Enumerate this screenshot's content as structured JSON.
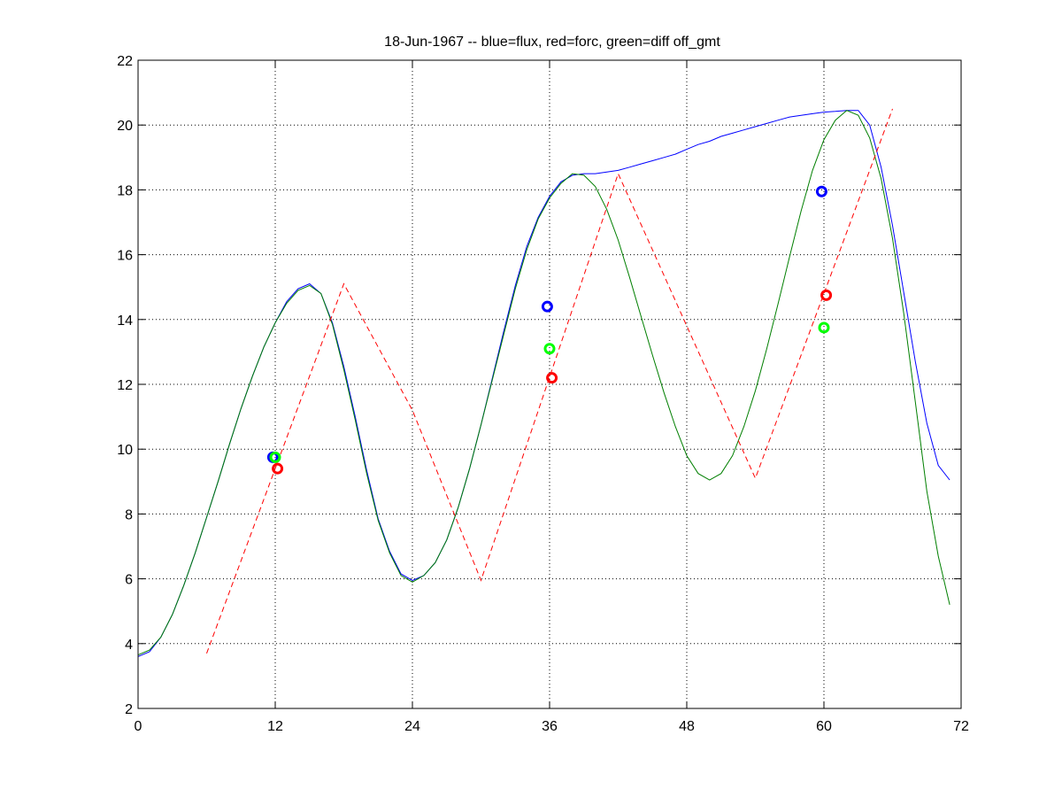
{
  "chart_data": {
    "type": "line",
    "title": "18-Jun-1967 -- blue=flux, red=forc, green=diff off_gmt",
    "xlabel": "",
    "ylabel": "",
    "xlim": [
      0,
      72
    ],
    "ylim": [
      2,
      22
    ],
    "xticks": [
      0,
      12,
      24,
      36,
      48,
      60,
      72
    ],
    "yticks": [
      2,
      4,
      6,
      8,
      10,
      12,
      14,
      16,
      18,
      20,
      22
    ],
    "grid": true,
    "series": [
      {
        "color": "#0000ff",
        "style": "solid",
        "x": [
          0,
          1,
          2,
          3,
          4,
          5,
          6,
          7,
          8,
          9,
          10,
          11,
          12,
          13,
          14,
          15,
          16,
          17,
          18,
          19,
          20,
          21,
          22,
          23,
          24,
          25,
          26,
          27,
          28,
          29,
          30,
          31,
          32,
          33,
          34,
          35,
          36,
          37,
          38,
          39,
          40,
          41,
          42,
          43,
          44,
          45,
          46,
          47,
          48,
          49,
          50,
          51,
          52,
          53,
          54,
          55,
          56,
          57,
          58,
          59,
          60,
          61,
          62,
          63,
          64,
          65,
          66,
          67,
          68,
          69,
          70,
          71
        ],
        "y": [
          3.6,
          3.75,
          4.2,
          4.9,
          5.8,
          6.8,
          7.9,
          9.0,
          10.15,
          11.25,
          12.25,
          13.15,
          13.9,
          14.55,
          14.95,
          15.1,
          14.8,
          13.9,
          12.55,
          11.0,
          9.35,
          7.85,
          6.85,
          6.15,
          5.95,
          6.1,
          6.5,
          7.2,
          8.2,
          9.4,
          10.75,
          12.2,
          13.65,
          15.05,
          16.25,
          17.15,
          17.8,
          18.25,
          18.45,
          18.5,
          18.5,
          18.55,
          18.6,
          18.7,
          18.8,
          18.9,
          19.0,
          19.1,
          19.25,
          19.4,
          19.5,
          19.65,
          19.75,
          19.85,
          19.95,
          20.05,
          20.15,
          20.25,
          20.3,
          20.35,
          20.4,
          20.42,
          20.45,
          20.45,
          20.0,
          18.7,
          16.9,
          14.8,
          12.7,
          10.8,
          9.5,
          9.05
        ]
      },
      {
        "color": "#007f00",
        "style": "solid",
        "x": [
          0,
          1,
          2,
          3,
          4,
          5,
          6,
          7,
          8,
          9,
          10,
          11,
          12,
          13,
          14,
          15,
          16,
          17,
          18,
          19,
          20,
          21,
          22,
          23,
          24,
          25,
          26,
          27,
          28,
          29,
          30,
          31,
          32,
          33,
          34,
          35,
          36,
          37,
          38,
          39,
          40,
          41,
          42,
          43,
          44,
          45,
          46,
          47,
          48,
          49,
          50,
          51,
          52,
          53,
          54,
          55,
          56,
          57,
          58,
          59,
          60,
          61,
          62,
          63,
          64,
          65,
          66,
          67,
          68,
          69,
          70,
          71
        ],
        "y": [
          3.65,
          3.8,
          4.2,
          4.9,
          5.8,
          6.8,
          7.9,
          9.0,
          10.15,
          11.25,
          12.25,
          13.15,
          13.9,
          14.5,
          14.9,
          15.05,
          14.8,
          13.85,
          12.45,
          10.9,
          9.25,
          7.8,
          6.8,
          6.1,
          5.9,
          6.1,
          6.5,
          7.2,
          8.2,
          9.4,
          10.75,
          12.15,
          13.55,
          14.95,
          16.15,
          17.1,
          17.75,
          18.2,
          18.5,
          18.45,
          18.1,
          17.4,
          16.45,
          15.3,
          14.1,
          12.9,
          11.75,
          10.7,
          9.8,
          9.25,
          9.05,
          9.25,
          9.8,
          10.7,
          11.8,
          13.1,
          14.5,
          15.95,
          17.35,
          18.6,
          19.55,
          20.15,
          20.45,
          20.3,
          19.6,
          18.35,
          16.5,
          14.15,
          11.45,
          8.7,
          6.7,
          5.2
        ]
      },
      {
        "color": "#ff0000",
        "style": "dashed",
        "x": [
          6,
          18,
          24,
          30,
          42,
          54,
          66
        ],
        "y": [
          3.7,
          15.1,
          11.2,
          5.95,
          18.5,
          9.1,
          20.5
        ]
      }
    ],
    "markers": [
      {
        "color": "#0000ff",
        "x": 11.8,
        "y": 9.75
      },
      {
        "color": "#00ff00",
        "x": 12.0,
        "y": 9.75
      },
      {
        "color": "#ff0000",
        "x": 12.2,
        "y": 9.4
      },
      {
        "color": "#0000ff",
        "x": 35.8,
        "y": 14.4
      },
      {
        "color": "#00ff00",
        "x": 36.0,
        "y": 13.1
      },
      {
        "color": "#ff0000",
        "x": 36.2,
        "y": 12.2
      },
      {
        "color": "#0000ff",
        "x": 59.8,
        "y": 17.95
      },
      {
        "color": "#00ff00",
        "x": 60.0,
        "y": 13.75
      },
      {
        "color": "#ff0000",
        "x": 60.2,
        "y": 14.75
      }
    ]
  }
}
